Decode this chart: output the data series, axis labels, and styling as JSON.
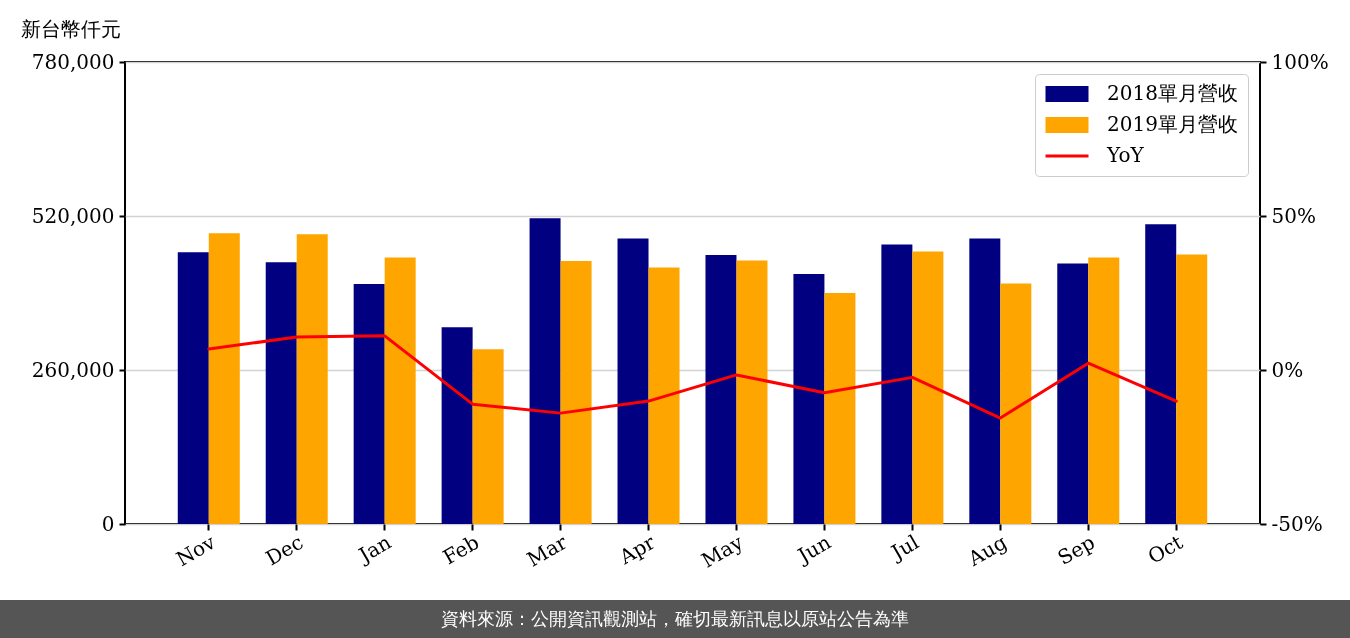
{
  "chart_data": {
    "type": "bar",
    "ylabel": "新台幣仟元",
    "categories": [
      "Nov",
      "Dec",
      "Jan",
      "Feb",
      "Mar",
      "Apr",
      "May",
      "Jun",
      "Jul",
      "Aug",
      "Sep",
      "Oct"
    ],
    "series": [
      {
        "name": "2018單月營收",
        "color": "#000080",
        "values": [
          459000,
          442000,
          405000,
          332000,
          516000,
          482000,
          454000,
          422000,
          472000,
          482000,
          440000,
          506000
        ]
      },
      {
        "name": "2019單月營收",
        "color": "#ffa500",
        "values": [
          491000,
          489000,
          450000,
          295000,
          444000,
          433000,
          445000,
          390000,
          460000,
          406000,
          450000,
          455000
        ]
      },
      {
        "name": "YoY",
        "type": "line",
        "axis": "y2",
        "color": "#ff0000",
        "values": [
          6.8,
          10.7,
          11.1,
          -11.1,
          -14.0,
          -10.1,
          -1.6,
          -7.4,
          -2.4,
          -15.6,
          2.2,
          -10.1
        ]
      }
    ],
    "ylim": [
      0,
      780000
    ],
    "yticks": [
      0,
      {
        "value": 260000,
        "label": "260,000"
      },
      {
        "value": 520000,
        "label": "520,000"
      },
      {
        "value": 780000,
        "label": "780,000"
      }
    ],
    "y2lim": [
      -50,
      100
    ],
    "y2ticks": [
      {
        "value": -50,
        "label": "-50%"
      },
      {
        "value": 0,
        "label": "0%"
      },
      {
        "value": 50,
        "label": "50%"
      },
      {
        "value": 100,
        "label": "100%"
      }
    ],
    "grid": "y",
    "legend": "top right",
    "annotations": [
      "資料來源：公開資訊觀測站，確切最新訊息以原站公告為準"
    ]
  }
}
